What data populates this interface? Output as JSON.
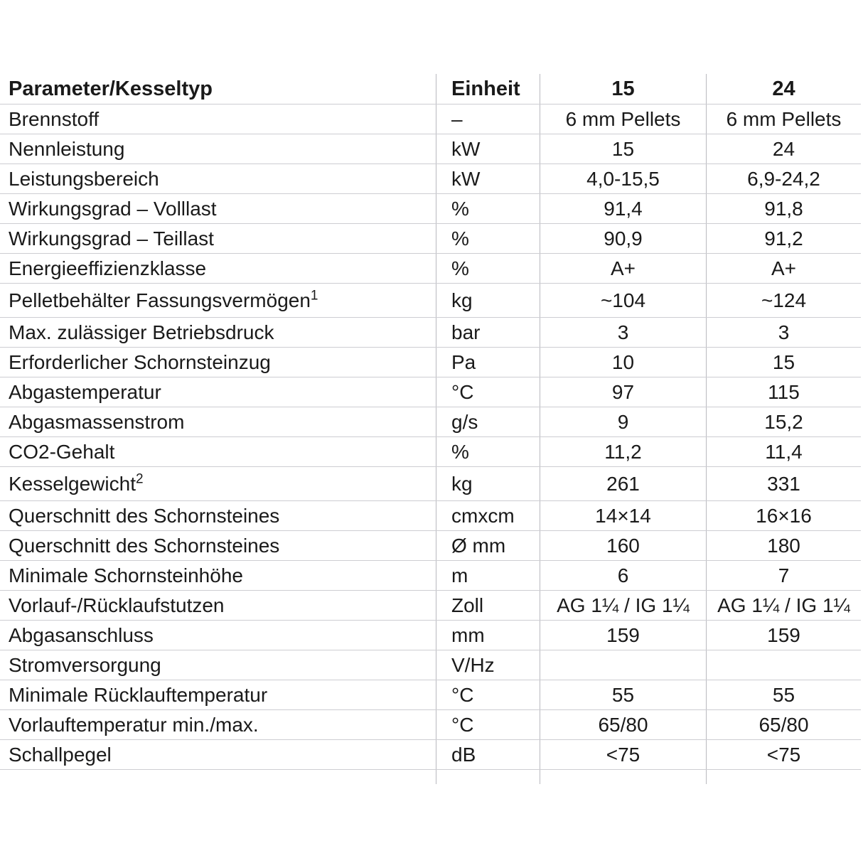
{
  "page": {
    "background": "#ffffff"
  },
  "colors": {
    "text": "#1a1a1a",
    "grid_line_horizontal": "#cdcdd2",
    "grid_line_vertical": "#b9b9bf"
  },
  "table": {
    "header": {
      "parameter": "Parameter/Kesseltyp",
      "unit": "Einheit",
      "model15": "15",
      "model24": "24"
    },
    "rows": [
      {
        "parameter": "Brennstoff",
        "sup": "",
        "unit": "–",
        "v15": "6 mm Pellets",
        "v24": "6 mm Pellets",
        "tall": false
      },
      {
        "parameter": "Nennleistung",
        "sup": "",
        "unit": "kW",
        "v15": "15",
        "v24": "24",
        "tall": false
      },
      {
        "parameter": "Leistungsbereich",
        "sup": "",
        "unit": "kW",
        "v15": "4,0-15,5",
        "v24": "6,9-24,2",
        "tall": false
      },
      {
        "parameter": "Wirkungsgrad – Volllast",
        "sup": "",
        "unit": "%",
        "v15": "91,4",
        "v24": "91,8",
        "tall": false
      },
      {
        "parameter": "Wirkungsgrad – Teillast",
        "sup": "",
        "unit": "%",
        "v15": "90,9",
        "v24": "91,2",
        "tall": false
      },
      {
        "parameter": "Energieeffizienzklasse",
        "sup": "",
        "unit": "%",
        "v15": "A+",
        "v24": "A+",
        "tall": false
      },
      {
        "parameter": "Pelletbehälter Fassungsvermögen",
        "sup": "1",
        "unit": "kg",
        "v15": "~104",
        "v24": "~124",
        "tall": true
      },
      {
        "parameter": "Max. zulässiger Betriebsdruck",
        "sup": "",
        "unit": "bar",
        "v15": "3",
        "v24": "3",
        "tall": false
      },
      {
        "parameter": "Erforderlicher Schornsteinzug",
        "sup": "",
        "unit": "Pa",
        "v15": "10",
        "v24": "15",
        "tall": false
      },
      {
        "parameter": "Abgastemperatur",
        "sup": "",
        "unit": "°C",
        "v15": "97",
        "v24": "115",
        "tall": false
      },
      {
        "parameter": "Abgasmassenstrom",
        "sup": "",
        "unit": "g/s",
        "v15": "9",
        "v24": "15,2",
        "tall": false
      },
      {
        "parameter": "CO2-Gehalt",
        "sup": "",
        "unit": "%",
        "v15": "11,2",
        "v24": "11,4",
        "tall": false
      },
      {
        "parameter": "Kesselgewicht",
        "sup": "2",
        "unit": "kg",
        "v15": "261",
        "v24": "331",
        "tall": true
      },
      {
        "parameter": "Querschnitt des Schornsteines",
        "sup": "",
        "unit": "cmxcm",
        "v15": "14×14",
        "v24": "16×16",
        "tall": false
      },
      {
        "parameter": "Querschnitt des Schornsteines",
        "sup": "",
        "unit": "Ø mm",
        "v15": "160",
        "v24": "180",
        "tall": false
      },
      {
        "parameter": "Minimale Schornsteinhöhe",
        "sup": "",
        "unit": "m",
        "v15": "6",
        "v24": "7",
        "tall": false
      },
      {
        "parameter": "Vorlauf-/Rücklaufstutzen",
        "sup": "",
        "unit": "Zoll",
        "v15": "AG 1¼ / IG 1¼",
        "v24": "AG 1¼ / IG 1¼",
        "tall": false
      },
      {
        "parameter": "Abgasanschluss",
        "sup": "",
        "unit": "mm",
        "v15": "159",
        "v24": "159",
        "tall": false
      },
      {
        "parameter": "Stromversorgung",
        "sup": "",
        "unit": "V/Hz",
        "v15": "",
        "v24": "",
        "tall": false
      },
      {
        "parameter": "Minimale Rücklauftemperatur",
        "sup": "",
        "unit": "°C",
        "v15": "55",
        "v24": "55",
        "tall": false
      },
      {
        "parameter": "Vorlauftemperatur min./max.",
        "sup": "",
        "unit": "°C",
        "v15": "65/80",
        "v24": "65/80",
        "tall": false
      },
      {
        "parameter": "Schallpegel",
        "sup": "",
        "unit": "dB",
        "v15": "<75",
        "v24": "<75",
        "tall": false
      }
    ]
  }
}
